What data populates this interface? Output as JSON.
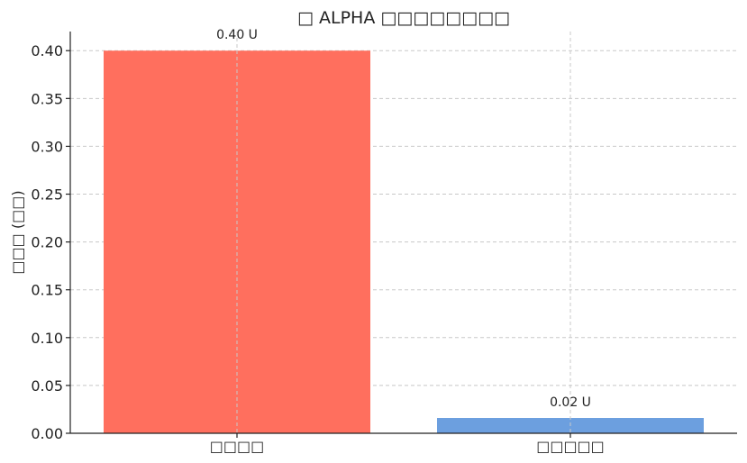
{
  "chart_data": {
    "type": "bar",
    "title": "□ ALPHA □□□□□□□□",
    "xlabel": "",
    "ylabel": "□□□ (□□)",
    "categories": [
      "□□□□",
      "□□□□□"
    ],
    "values": [
      0.4,
      0.016
    ],
    "data_labels": [
      "0.40 U",
      "0.02 U"
    ],
    "colors": [
      "#ff6f5e",
      "#6c9fdf"
    ],
    "ylim": [
      0,
      0.42
    ],
    "yticks": [
      "0.00",
      "0.05",
      "0.10",
      "0.15",
      "0.20",
      "0.25",
      "0.30",
      "0.35",
      "0.40"
    ],
    "ytick_values": [
      0,
      0.05,
      0.1,
      0.15,
      0.2,
      0.25,
      0.3,
      0.35,
      0.4
    ],
    "grid": true,
    "legend": "none"
  }
}
